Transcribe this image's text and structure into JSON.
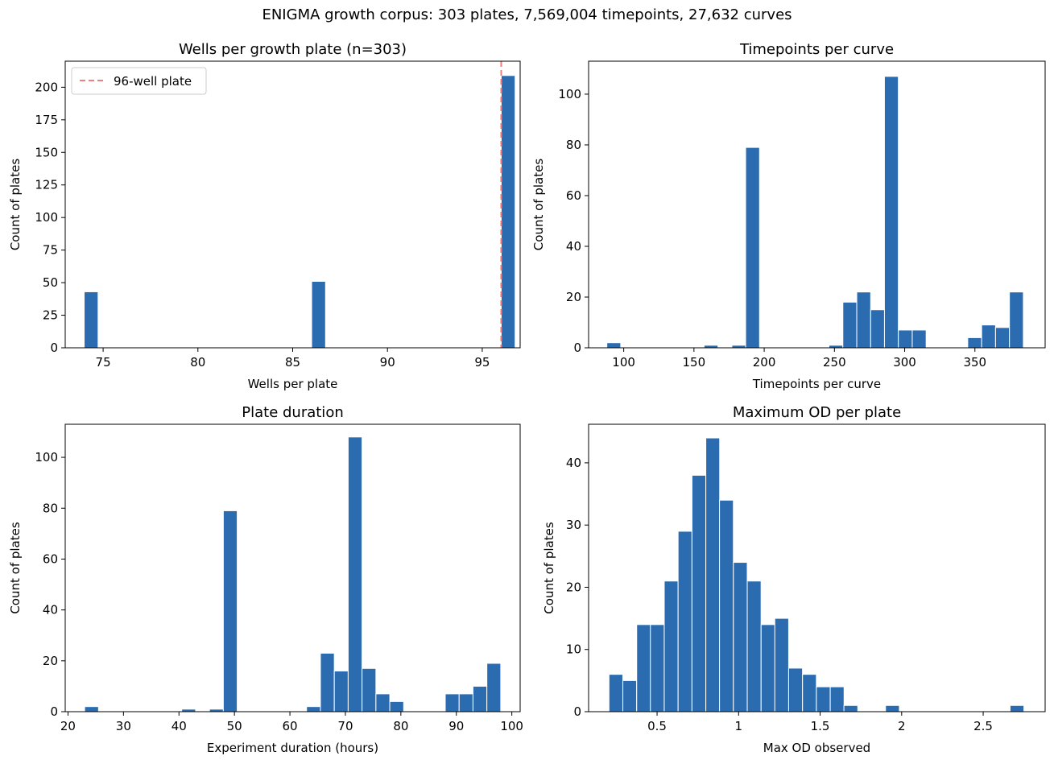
{
  "suptitle": "ENIGMA growth corpus: 303 plates, 7,569,004 timepoints, 27,632 curves",
  "colors": {
    "bar": "#2b6cb0",
    "bar_edge": "#ffffff",
    "reference_line": "#f08080"
  },
  "chart_data": [
    {
      "type": "bar",
      "title": "Wells per growth plate (n=303)",
      "xlabel": "Wells per plate",
      "ylabel": "Count of plates",
      "xlim": [
        73,
        97
      ],
      "ylim": [
        0,
        220
      ],
      "xticks": [
        75,
        80,
        85,
        90,
        95
      ],
      "yticks": [
        0,
        25,
        50,
        75,
        100,
        125,
        150,
        175,
        200
      ],
      "bin_width": 0.733,
      "bins": [
        {
          "x": 74,
          "count": 43
        },
        {
          "x": 86,
          "count": 51
        },
        {
          "x": 96,
          "count": 209
        }
      ],
      "reference_lines": [
        {
          "x": 96,
          "label": "96-well plate",
          "style": "dashed"
        }
      ],
      "legend": {
        "position": "upper-left",
        "entries": [
          "96-well plate"
        ]
      }
    },
    {
      "type": "bar",
      "title": "Timepoints per curve",
      "xlabel": "Timepoints per curve",
      "ylabel": "Count of plates",
      "xlim": [
        75,
        400
      ],
      "ylim": [
        0,
        113
      ],
      "xticks": [
        100,
        150,
        200,
        250,
        300,
        350
      ],
      "yticks": [
        0,
        20,
        40,
        60,
        80,
        100
      ],
      "bin_width": 9.88,
      "bins": [
        {
          "x": 88,
          "count": 2
        },
        {
          "x": 157.2,
          "count": 1
        },
        {
          "x": 177,
          "count": 1
        },
        {
          "x": 186.8,
          "count": 79
        },
        {
          "x": 246.1,
          "count": 1
        },
        {
          "x": 256,
          "count": 18
        },
        {
          "x": 265.9,
          "count": 22
        },
        {
          "x": 275.8,
          "count": 15
        },
        {
          "x": 285.6,
          "count": 107
        },
        {
          "x": 295.5,
          "count": 7
        },
        {
          "x": 305.4,
          "count": 7
        },
        {
          "x": 344.9,
          "count": 4
        },
        {
          "x": 354.8,
          "count": 9
        },
        {
          "x": 364.7,
          "count": 8
        },
        {
          "x": 374.6,
          "count": 22
        }
      ]
    },
    {
      "type": "bar",
      "title": "Plate duration",
      "xlabel": "Experiment duration (hours)",
      "ylabel": "Count of plates",
      "xlim": [
        19.5,
        101.5
      ],
      "ylim": [
        0,
        113
      ],
      "xticks": [
        20,
        30,
        40,
        50,
        60,
        70,
        80,
        90,
        100
      ],
      "yticks": [
        0,
        20,
        40,
        60,
        80,
        100
      ],
      "bin_width": 2.5,
      "bins": [
        {
          "x": 23,
          "count": 2
        },
        {
          "x": 40.5,
          "count": 1
        },
        {
          "x": 45.5,
          "count": 1
        },
        {
          "x": 48,
          "count": 79
        },
        {
          "x": 63,
          "count": 2
        },
        {
          "x": 65.5,
          "count": 23
        },
        {
          "x": 68,
          "count": 16
        },
        {
          "x": 70.5,
          "count": 108
        },
        {
          "x": 73,
          "count": 17
        },
        {
          "x": 75.5,
          "count": 7
        },
        {
          "x": 78,
          "count": 4
        },
        {
          "x": 88,
          "count": 7
        },
        {
          "x": 90.5,
          "count": 7
        },
        {
          "x": 93,
          "count": 10
        },
        {
          "x": 95.5,
          "count": 19
        }
      ]
    },
    {
      "type": "bar",
      "title": "Maximum OD per plate",
      "xlabel": "Max OD observed",
      "ylabel": "Count of plates",
      "xlim": [
        0.08,
        2.88
      ],
      "ylim": [
        0,
        46.2
      ],
      "xticks": [
        0.5,
        1.0,
        1.5,
        2.0,
        2.5
      ],
      "yticks": [
        0,
        10,
        20,
        30,
        40
      ],
      "bin_width": 0.0848,
      "bins": [
        {
          "x": 0.205,
          "count": 6
        },
        {
          "x": 0.29,
          "count": 5
        },
        {
          "x": 0.375,
          "count": 14
        },
        {
          "x": 0.459,
          "count": 14
        },
        {
          "x": 0.544,
          "count": 21
        },
        {
          "x": 0.629,
          "count": 29
        },
        {
          "x": 0.714,
          "count": 38
        },
        {
          "x": 0.799,
          "count": 44
        },
        {
          "x": 0.883,
          "count": 34
        },
        {
          "x": 0.968,
          "count": 24
        },
        {
          "x": 1.053,
          "count": 21
        },
        {
          "x": 1.138,
          "count": 14
        },
        {
          "x": 1.222,
          "count": 15
        },
        {
          "x": 1.307,
          "count": 7
        },
        {
          "x": 1.392,
          "count": 6
        },
        {
          "x": 1.477,
          "count": 4
        },
        {
          "x": 1.562,
          "count": 4
        },
        {
          "x": 1.646,
          "count": 1
        },
        {
          "x": 1.901,
          "count": 1
        },
        {
          "x": 2.665,
          "count": 1
        }
      ]
    }
  ]
}
